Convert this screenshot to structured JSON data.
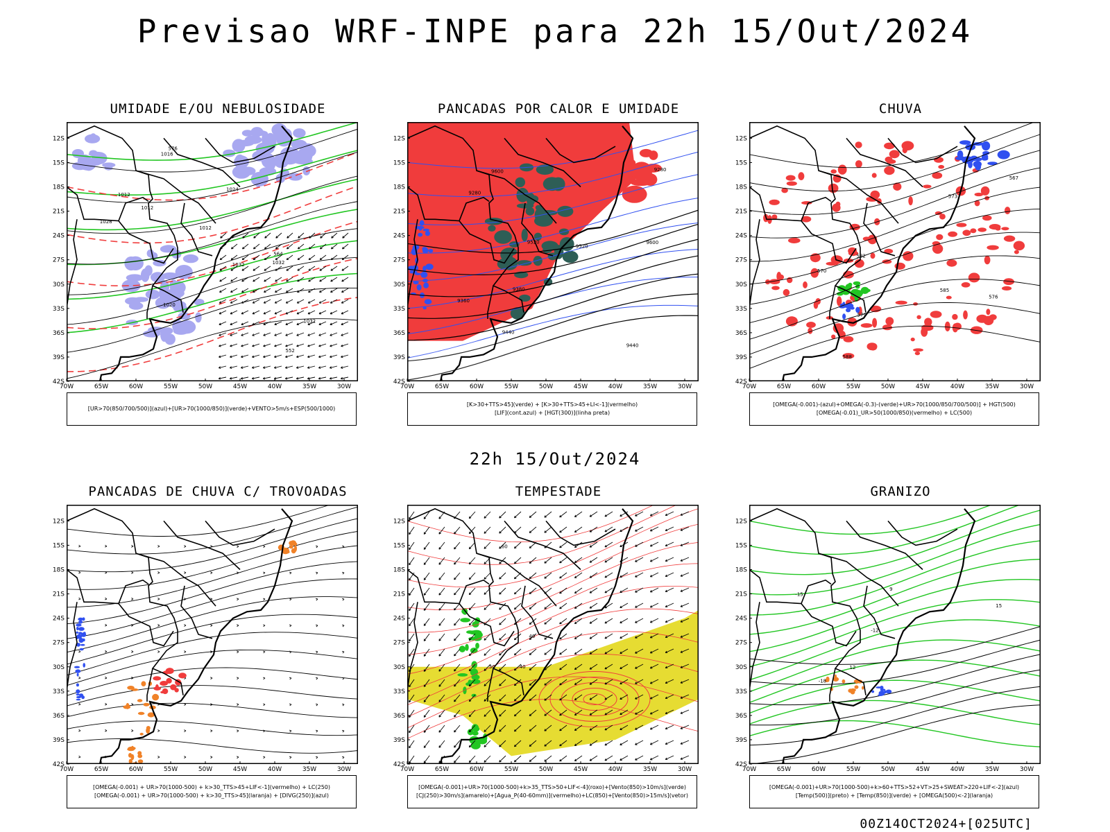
{
  "title": "Previsao WRF-INPE  para 22h 15/Out/2024",
  "subtitle": "22h 15/Out/2024",
  "footer": "00Z14OCT2024+[025UTC]",
  "axes": {
    "lat_labels": [
      "12S",
      "15S",
      "18S",
      "21S",
      "24S",
      "27S",
      "30S",
      "33S",
      "36S",
      "39S",
      "42S"
    ],
    "lon_labels": [
      "70W",
      "65W",
      "60W",
      "55W",
      "50W",
      "45W",
      "40W",
      "35W",
      "30W"
    ]
  },
  "colors": {
    "red": "#f03c3c",
    "green": "#22c622",
    "blue": "#3050f0",
    "lavender": "#a8a8f0",
    "darkteal": "#2e5e56",
    "yellow": "#e6dc32",
    "orange": "#f08228",
    "purple": "#9a3cd2"
  },
  "panels": [
    {
      "title": "UMIDADE E/OU NEBULOSIDADE",
      "legend": [
        "[UR>70(850/700/500)](azul)+[UR>70(1000/850)](verde)+VENTO>5m/s+ESP(500/1000)"
      ],
      "contour_labels": [
        "1012",
        "1012",
        "1012",
        "1016",
        "1020",
        "1024",
        "1028",
        "1032",
        "1032",
        "1032",
        "576",
        "564",
        "552"
      ]
    },
    {
      "title": "PANCADAS POR CALOR E UMIDADE",
      "legend": [
        "[K>30+TTS>45](verde) + [K>30+TTS>45+LI<-1](vermelho)",
        "[LIF](cont.azul) + [HGT(300)](linha preta)"
      ],
      "contour_labels": [
        "9600",
        "9600",
        "9520",
        "9440",
        "9360",
        "9280",
        "9520",
        "9440",
        "9380",
        "9280"
      ]
    },
    {
      "title": "CHUVA",
      "legend": [
        "[OMEGA(-0.001)-(azul)+OMEGA(-0.3)-(verde)+UR>70(1000/850/700/500)] + HGT(500)",
        "[OMEGA(-0.01)_UR>50(1000/850)(vermelho) + LC(500)"
      ],
      "contour_labels": [
        "588",
        "585",
        "582",
        "579",
        "576",
        "573",
        "570",
        "567"
      ]
    },
    {
      "title": "PANCADAS DE CHUVA C/ TROVOADAS",
      "legend": [
        "[OMEGA(-0.001) + UR>70(1000-500) + k>30_TTS>45+LIF<-1](vermelho) + LC(250)",
        "[OMEGA(-0.001) + UR>70(1000-500) + k>30_TTS>45](laranja) + [DIVG(250)](azul)"
      ],
      "contour_labels": []
    },
    {
      "title": "TEMPESTADE",
      "legend": [
        "[OMEGA(-0.001)+UR>70(1000-500)+k>35_TTS>50+LIF<-4](roxo)+[Vento(850)>10m/s](verde)",
        "[CJ(250)>30m/s](amarelo)+[Agua_P(40-60mm)](vermelho)+LC(850)+[Vento(850)>15m/s](vetor)"
      ],
      "contour_labels": [
        "40",
        "60",
        "50",
        "40"
      ]
    },
    {
      "title": "GRANIZO",
      "legend": [
        "[OMEGA(-0.001)+UR>70(1000-500)+k>60+TTS>52+VT>25+SWEAT>220+LIF<-2](azul)",
        "[Temp(500)](preto) + [Temp(850)](verde) + [OMEGA(500)<-2](laranja)"
      ],
      "contour_labels": [
        "-12",
        "-15",
        "-18",
        "15",
        "12",
        "9"
      ]
    }
  ]
}
